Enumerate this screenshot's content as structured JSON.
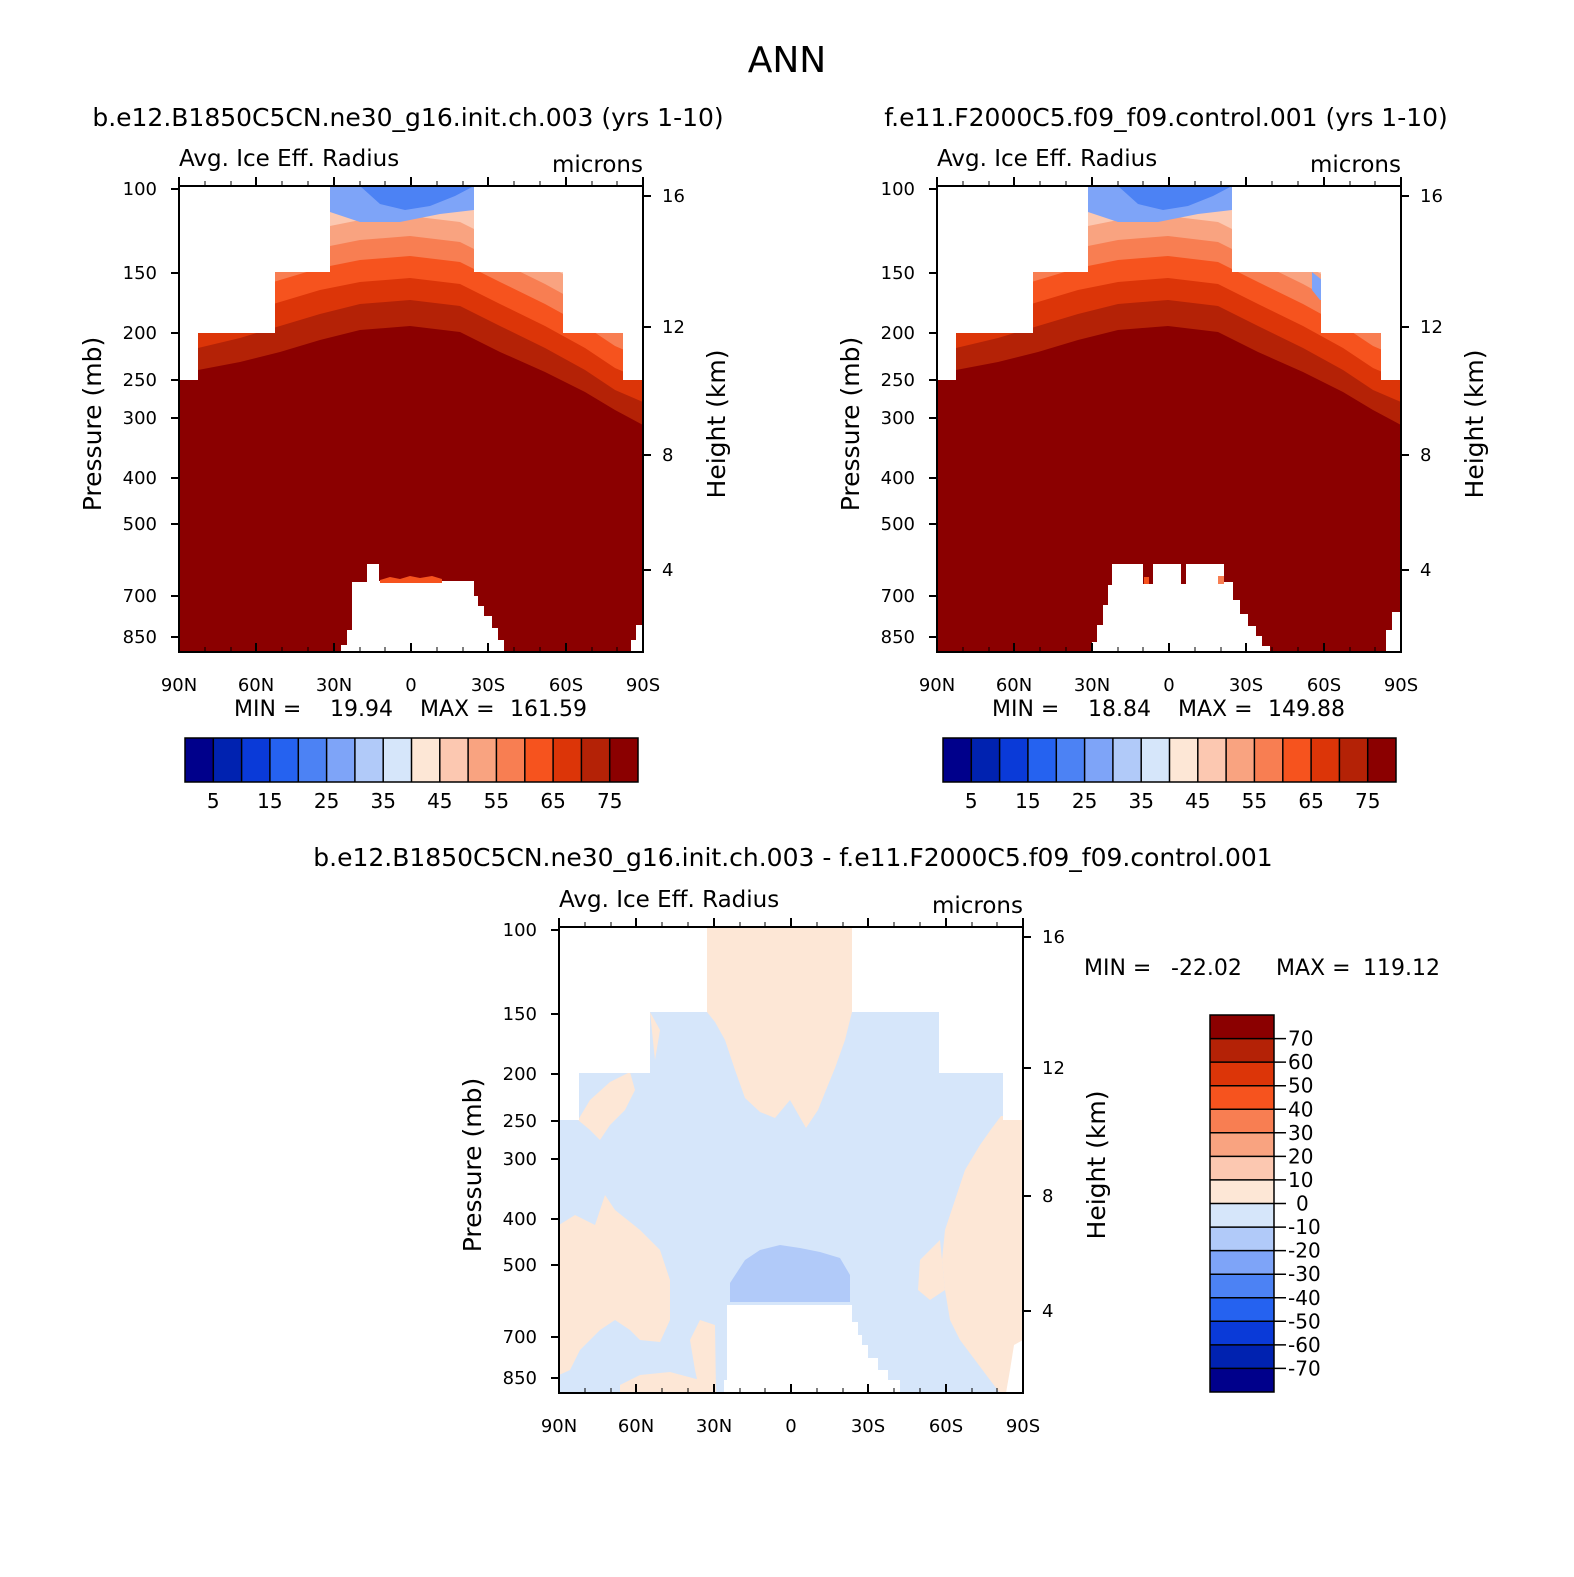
{
  "figure_title": "ANN",
  "chart_data": [
    {
      "type": "heatmap",
      "id": "left",
      "case_title": "b.e12.B1850C5CN.ne30_g16.init.ch.003 (yrs 1-10)",
      "variable": "Avg. Ice Eff. Radius",
      "units": "microns",
      "ylabel": "Pressure (mb)",
      "ylabel_right": "Height (km)",
      "x_ticks": [
        "90N",
        "60N",
        "30N",
        "0",
        "30S",
        "60S",
        "90S"
      ],
      "y_ticks": [
        100,
        150,
        200,
        250,
        300,
        400,
        500,
        700,
        850
      ],
      "height_ticks": [
        16,
        12,
        8,
        4
      ],
      "min_label": "MIN =",
      "min": "19.94",
      "max_label": "MAX =",
      "max": "161.59",
      "colorbar_labels": [
        "5",
        "15",
        "25",
        "35",
        "45",
        "55",
        "65",
        "75"
      ]
    },
    {
      "type": "heatmap",
      "id": "right",
      "case_title": "f.e11.F2000C5.f09_f09.control.001 (yrs 1-10)",
      "variable": "Avg. Ice Eff. Radius",
      "units": "microns",
      "ylabel": "Pressure (mb)",
      "ylabel_right": "Height (km)",
      "x_ticks": [
        "90N",
        "60N",
        "30N",
        "0",
        "30S",
        "60S",
        "90S"
      ],
      "y_ticks": [
        100,
        150,
        200,
        250,
        300,
        400,
        500,
        700,
        850
      ],
      "height_ticks": [
        16,
        12,
        8,
        4
      ],
      "min_label": "MIN =",
      "min": "18.84",
      "max_label": "MAX =",
      "max": "149.88",
      "colorbar_labels": [
        "5",
        "15",
        "25",
        "35",
        "45",
        "55",
        "65",
        "75"
      ]
    },
    {
      "type": "heatmap",
      "id": "diff",
      "case_title": "b.e12.B1850C5CN.ne30_g16.init.ch.003 - f.e11.F2000C5.f09_f09.control.001",
      "variable": "Avg. Ice Eff. Radius",
      "units": "microns",
      "ylabel": "Pressure (mb)",
      "ylabel_right": "Height (km)",
      "x_ticks": [
        "90N",
        "60N",
        "30N",
        "0",
        "30S",
        "60S",
        "90S"
      ],
      "y_ticks": [
        100,
        150,
        200,
        250,
        300,
        400,
        500,
        700,
        850
      ],
      "height_ticks": [
        16,
        12,
        8,
        4
      ],
      "min_label": "MIN =",
      "min": "-22.02",
      "max_label": "MAX =",
      "max": "119.12",
      "colorbar_labels": [
        "70",
        "60",
        "50",
        "40",
        "30",
        "20",
        "10",
        "0",
        "-10",
        "-20",
        "-30",
        "-40",
        "-50",
        "-60",
        "-70"
      ]
    }
  ],
  "palette": {
    "seq": [
      "#00008b",
      "#0022b0",
      "#0a3ad8",
      "#2562f0",
      "#4c82f4",
      "#7ea4f8",
      "#b1caf9",
      "#d6e6fa",
      "#fde7d6",
      "#fcc8b1",
      "#f9a380",
      "#f87e52",
      "#f6531e",
      "#dc3508",
      "#b42206",
      "#8b0000"
    ],
    "diff": [
      "#8b0000",
      "#b42206",
      "#dc3508",
      "#f6531e",
      "#f87e52",
      "#f9a380",
      "#fcc8b1",
      "#fde7d6",
      "#d6e6fa",
      "#b1caf9",
      "#7ea4f8",
      "#4c82f4",
      "#2562f0",
      "#0a3ad8",
      "#0022b0",
      "#00008b"
    ]
  }
}
